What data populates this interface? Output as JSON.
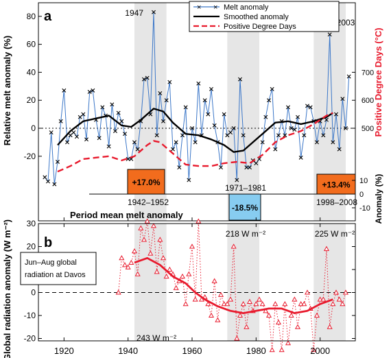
{
  "chart_data": [
    {
      "type": "line",
      "panel_label": "a",
      "ylabel": "Relative melt anomaly (%)",
      "ylim": [
        -30,
        85
      ],
      "yticks": [
        -20,
        0,
        20,
        40,
        60,
        80
      ],
      "y2label": "Positive Degree Days (°C)",
      "y2ticks": [
        {
          "label": "500",
          "value": 0
        },
        {
          "label": "600",
          "value": 20
        },
        {
          "label": "700",
          "value": 40
        }
      ],
      "y3label": "Anomaly (%)",
      "y3ticks": [
        {
          "label": "10",
          "value": -45
        },
        {
          "label": "0",
          "value": -52
        },
        {
          "label": "-10",
          "value": -59
        }
      ],
      "xlim": [
        1912,
        2011
      ],
      "legend": {
        "position": "top-right",
        "entries": [
          "Melt anomaly",
          "Smoothed anomaly",
          "Positive Degree Days"
        ]
      },
      "annotations": [
        {
          "text": "1947",
          "x": 1947
        },
        {
          "text": "2003",
          "x": 2003
        },
        {
          "text": "1971–1981",
          "x": 1976
        },
        {
          "text": "1942–1952",
          "x": 1947
        },
        {
          "text": "1998–2008",
          "x": 2003
        },
        {
          "text": "Period mean melt anomaly"
        }
      ],
      "shaded_periods": [
        [
          1942,
          1952
        ],
        [
          1971,
          1981
        ],
        [
          1998,
          2008
        ]
      ],
      "period_boxes": [
        {
          "label": "+17.0%",
          "value": 17.0,
          "color": "#f26c1d",
          "center": 1947
        },
        {
          "label": "-18.5%",
          "value": -18.5,
          "color": "#87ccf0",
          "center": 1976
        },
        {
          "label": "+13.4%",
          "value": 13.4,
          "color": "#f26c1d",
          "center": 2003
        }
      ],
      "series": [
        {
          "name": "Melt anomaly",
          "color": "#3a76c8",
          "x": [
            1914,
            1915,
            1916,
            1917,
            1918,
            1919,
            1920,
            1921,
            1922,
            1923,
            1924,
            1925,
            1926,
            1927,
            1928,
            1929,
            1930,
            1931,
            1932,
            1933,
            1934,
            1935,
            1936,
            1937,
            1938,
            1939,
            1940,
            1941,
            1942,
            1943,
            1944,
            1945,
            1946,
            1947,
            1948,
            1949,
            1950,
            1951,
            1952,
            1953,
            1954,
            1955,
            1956,
            1957,
            1958,
            1959,
            1960,
            1961,
            1962,
            1963,
            1964,
            1965,
            1966,
            1967,
            1968,
            1969,
            1970,
            1971,
            1972,
            1973,
            1974,
            1975,
            1976,
            1977,
            1978,
            1979,
            1980,
            1981,
            1982,
            1983,
            1984,
            1985,
            1986,
            1987,
            1988,
            1989,
            1990,
            1991,
            1992,
            1993,
            1994,
            1995,
            1996,
            1997,
            1998,
            1999,
            2000,
            2001,
            2002,
            2003,
            2004,
            2005,
            2006,
            2007,
            2008,
            2009
          ],
          "y": [
            -35,
            -38,
            -3,
            -40,
            -24,
            5,
            27,
            -10,
            -5,
            -3,
            -6,
            8,
            10,
            -8,
            26,
            27,
            6,
            -7,
            15,
            9,
            -13,
            17,
            -2,
            11,
            5,
            -4,
            -22,
            -22,
            -10,
            -15,
            5,
            35,
            36,
            10,
            83,
            -5,
            25,
            5,
            20,
            33,
            -15,
            -10,
            -28,
            -5,
            15,
            -37,
            0,
            -10,
            32,
            -5,
            20,
            10,
            28,
            2,
            -10,
            -28,
            10,
            -5,
            -3,
            0,
            -37,
            35,
            -5,
            -28,
            -28,
            -23,
            -25,
            -22,
            -10,
            8,
            20,
            28,
            -15,
            -5,
            5,
            -5,
            15,
            0,
            -1,
            8,
            -21,
            -5,
            16,
            15,
            5,
            -10,
            5,
            -5,
            6,
            67,
            -10,
            10,
            -15,
            21,
            0,
            37
          ]
        },
        {
          "name": "Smoothed anomaly",
          "color": "#000000",
          "x": [
            1918,
            1922,
            1926,
            1930,
            1934,
            1938,
            1941,
            1944,
            1948,
            1951,
            1954,
            1958,
            1962,
            1966,
            1970,
            1973,
            1976,
            1978,
            1982,
            1986,
            1990,
            1994,
            1998,
            2002,
            2004
          ],
          "y": [
            -12,
            -2,
            5,
            7,
            9,
            2,
            1,
            6,
            14,
            12,
            4,
            -4,
            -5,
            -8,
            -12,
            -17,
            -16,
            -12,
            -4,
            4,
            5,
            3,
            5,
            8,
            11
          ]
        },
        {
          "name": "Positive Degree Days",
          "color": "#e8192c",
          "x": [
            1918,
            1922,
            1926,
            1930,
            1934,
            1938,
            1942,
            1946,
            1948,
            1950,
            1954,
            1958,
            1962,
            1966,
            1970,
            1974,
            1978,
            1982,
            1986,
            1990,
            1994,
            1998,
            2002,
            2004
          ],
          "y": [
            -31,
            -27,
            -22,
            -21,
            -20,
            -23,
            -20,
            -12,
            -9,
            -10,
            -18,
            -26,
            -27,
            -27,
            -25,
            -24,
            -25,
            -19,
            -10,
            -5,
            -2,
            3,
            9,
            11
          ]
        }
      ]
    },
    {
      "type": "scatter",
      "panel_label": "b",
      "ylabel": "Global radiation anomaly (W m⁻²)",
      "ylim": [
        -25,
        33
      ],
      "yticks": [
        -20,
        -10,
        0,
        10,
        20,
        30
      ],
      "xlim": [
        1912,
        2011
      ],
      "xticks": [
        1920,
        1940,
        1960,
        1980,
        2000
      ],
      "legend": {
        "position": "top-left",
        "entries": [
          "Jun–Aug global",
          "radiation at Davos"
        ]
      },
      "annotations": [
        {
          "text": "218 W m⁻²"
        },
        {
          "text": "225 W m⁻²"
        },
        {
          "text": "243 W m⁻²"
        }
      ],
      "series": [
        {
          "name": "Global radiation anomaly",
          "color": "#e8192c",
          "x": [
            1937,
            1938,
            1939,
            1940,
            1941,
            1942,
            1943,
            1944,
            1945,
            1946,
            1947,
            1948,
            1949,
            1950,
            1951,
            1952,
            1953,
            1954,
            1955,
            1956,
            1957,
            1958,
            1959,
            1960,
            1961,
            1962,
            1963,
            1964,
            1965,
            1966,
            1967,
            1968,
            1969,
            1970,
            1971,
            1972,
            1973,
            1974,
            1975,
            1976,
            1977,
            1978,
            1979,
            1980,
            1981,
            1982,
            1983,
            1984,
            1985,
            1986,
            1987,
            1988,
            1989,
            1990,
            1991,
            1992,
            1993,
            1994,
            1995,
            1996,
            1997,
            1998,
            1999,
            2000,
            2001,
            2002,
            2003,
            2004,
            2005,
            2006,
            2007,
            2008
          ],
          "y": [
            0,
            15,
            12,
            11,
            13,
            18,
            8,
            28,
            23,
            31,
            17,
            29,
            9,
            23,
            15,
            7,
            10,
            8,
            2,
            5,
            7,
            -5,
            8,
            20,
            -3,
            31,
            -3,
            -2,
            -5,
            -10,
            5,
            -12,
            -1,
            -5,
            -5,
            -3,
            20,
            -20,
            -10,
            -5,
            -15,
            -4,
            -8,
            -5,
            -3,
            -5,
            -8,
            -10,
            -25,
            -5,
            -13,
            -25,
            -5,
            -22,
            -10,
            -3,
            -15,
            -5,
            -5,
            0,
            -7,
            -25,
            -10,
            -3,
            -3,
            19,
            -15,
            -5,
            0,
            -3,
            -5,
            0
          ]
        },
        {
          "name": "Smoothed radiation",
          "color": "#e8192c",
          "x": [
            1942,
            1946,
            1950,
            1954,
            1958,
            1961,
            1964,
            1968,
            1972,
            1976,
            1980,
            1984,
            1988,
            1992,
            1996,
            2000,
            2004
          ],
          "y": [
            13,
            15,
            12,
            7,
            4,
            0,
            -3,
            -6,
            -8,
            -9,
            -8,
            -7,
            -7,
            -9,
            -8,
            -5,
            -3
          ]
        }
      ]
    }
  ]
}
